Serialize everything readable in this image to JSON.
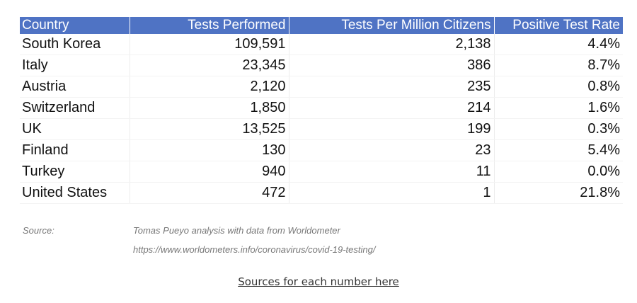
{
  "table": {
    "headers": [
      "Country",
      "Tests Performed",
      "Tests Per Million Citizens",
      "Positive Test Rate"
    ],
    "rows": [
      [
        "South Korea",
        "109,591",
        "2,138",
        "4.4%"
      ],
      [
        "Italy",
        "23,345",
        "386",
        "8.7%"
      ],
      [
        "Austria",
        "2,120",
        "235",
        "0.8%"
      ],
      [
        "Switzerland",
        "1,850",
        "214",
        "1.6%"
      ],
      [
        "UK",
        "13,525",
        "199",
        "0.3%"
      ],
      [
        "Finland",
        "130",
        "23",
        "5.4%"
      ],
      [
        "Turkey",
        "940",
        "11",
        "0.0%"
      ],
      [
        "United States",
        "472",
        "1",
        "21.8%"
      ]
    ]
  },
  "source": {
    "label": "Source:",
    "line1": "Tomas Pueyo analysis with data from Worldometer",
    "line2": "https://www.worldometers.info/coronavirus/covid-19-testing/"
  },
  "link": {
    "label": "Sources for each number here"
  },
  "colors": {
    "header_bg": "#4f73c4",
    "header_text": "#ffffff"
  }
}
